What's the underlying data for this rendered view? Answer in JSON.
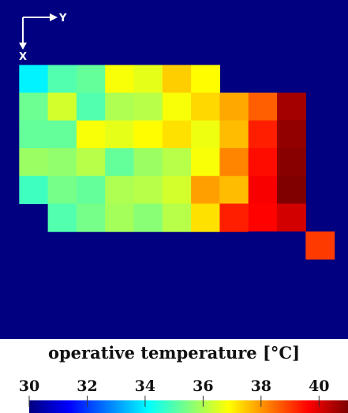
{
  "chart_data": {
    "type": "heatmap",
    "title": "operative temperature [°C]",
    "orientation": {
      "right_axis_label": "Y",
      "down_axis_label": "X"
    },
    "colormap": "jet",
    "background_value": 20,
    "colorbar": {
      "range": [
        30,
        41
      ],
      "ticks": [
        30,
        32,
        34,
        36,
        38,
        40
      ]
    },
    "grid": {
      "columns": 12,
      "rows": 10,
      "values": [
        [
          null,
          null,
          null,
          null,
          null,
          null,
          null,
          null,
          null,
          null,
          null,
          null
        ],
        [
          null,
          null,
          null,
          null,
          null,
          null,
          null,
          null,
          null,
          22.5,
          null,
          null
        ],
        [
          null,
          34.0,
          35.0,
          35.2,
          36.8,
          36.6,
          37.4,
          36.9,
          null,
          22.5,
          22.0,
          23.0
        ],
        [
          null,
          35.3,
          36.4,
          35.0,
          36.0,
          36.1,
          36.8,
          37.3,
          37.8,
          38.6,
          40.6,
          null
        ],
        [
          null,
          35.2,
          35.2,
          36.8,
          36.6,
          36.9,
          37.2,
          36.7,
          37.6,
          39.3,
          40.8,
          null
        ],
        [
          null,
          35.8,
          35.7,
          36.1,
          35.2,
          35.8,
          36.1,
          36.8,
          38.2,
          39.5,
          40.9,
          null
        ],
        [
          null,
          34.8,
          35.4,
          35.2,
          36.0,
          36.1,
          36.4,
          37.9,
          37.6,
          39.7,
          41.0,
          null
        ],
        [
          null,
          null,
          35.0,
          35.4,
          35.9,
          35.6,
          36.1,
          37.2,
          39.3,
          39.6,
          40.1,
          null
        ],
        [
          null,
          null,
          null,
          null,
          null,
          null,
          null,
          null,
          null,
          22.0,
          22.0,
          39.0
        ],
        [
          null,
          null,
          null,
          null,
          null,
          null,
          null,
          null,
          null,
          22.0,
          22.5,
          null
        ]
      ]
    }
  }
}
